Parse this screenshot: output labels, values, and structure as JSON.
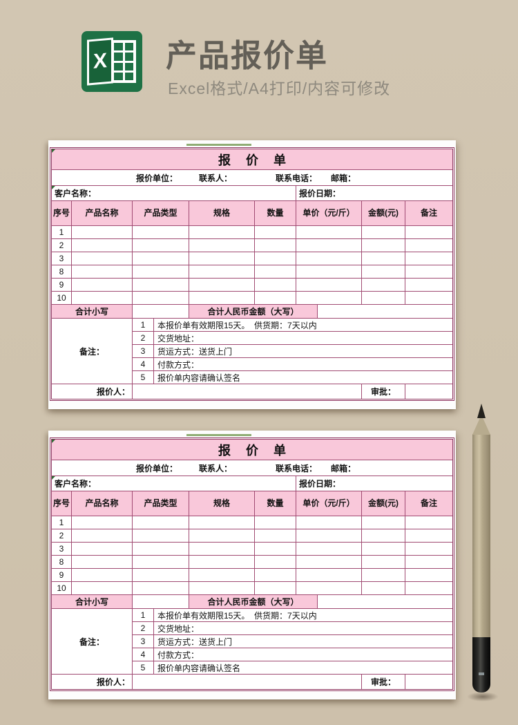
{
  "header": {
    "title": "产品报价单",
    "subtitle": "Excel格式/A4打印/内容可修改",
    "icon_letter": "X"
  },
  "sheet": {
    "title": "报价单",
    "info_labels": {
      "unit": "报价单位：",
      "contact": "联系人：",
      "phone": "联系电话：",
      "email": "邮箱："
    },
    "client_label": "客户名称：",
    "date_label": "报价日期：",
    "columns": [
      "序号",
      "产品名称",
      "产品类型",
      "规格",
      "数量",
      "单价（元/斤）",
      "金额(元)",
      "备注"
    ],
    "row_numbers": [
      "1",
      "2",
      "3",
      "8",
      "9",
      "10"
    ],
    "total_label": "合计小写",
    "total_caps_label": "合计人民币金额（大写）",
    "notes_label": "备注：",
    "notes": [
      {
        "num": "1",
        "text": "本报价单有效期限15天。  供货期：7天以内"
      },
      {
        "num": "2",
        "text": "交货地址："
      },
      {
        "num": "3",
        "text": "货运方式：送货上门"
      },
      {
        "num": "4",
        "text": "付款方式："
      },
      {
        "num": "5",
        "text": "报价单内容请确认签名"
      }
    ],
    "quoter_label": "报价人：",
    "approver_label": "审批："
  },
  "colors": {
    "background_tan": "#cfc3ae",
    "pink_fill": "#f9c8da",
    "grid_border_rose": "#a04a72",
    "outer_border_rose": "#8e3560",
    "excel_green": "#1e7145",
    "title_gray": "#635f57",
    "subtitle_gray": "#8e897e"
  }
}
